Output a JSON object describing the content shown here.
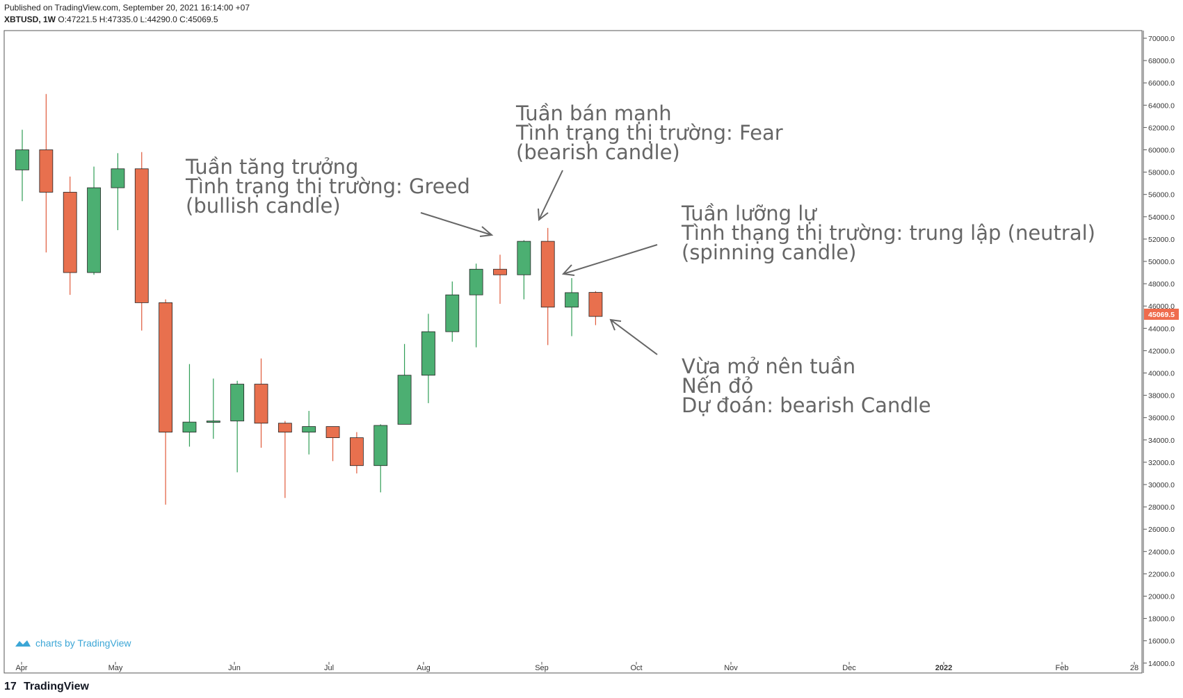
{
  "header": {
    "published": "Published on TradingView.com, September 20, 2021 16:14:00 +07",
    "symbol": "XBTUSD, 1W",
    "ohlc": "O:47221.5 H:47335.0 L:44290.0 C:45069.5"
  },
  "watermark": "charts by TradingView",
  "brand": "TradingView",
  "colors": {
    "up": "#4caf72",
    "down": "#e8704e",
    "up_wick": "#2e9d55",
    "down_wick": "#e05a3a",
    "price_tag": "#ef6c4d",
    "annotation": "#666666"
  },
  "chart_data": {
    "type": "candlestick",
    "ylim": [
      14000,
      71000
    ],
    "y_ticks": [
      "70000.0",
      "68000.0",
      "66000.0",
      "64000.0",
      "62000.0",
      "60000.0",
      "58000.0",
      "56000.0",
      "54000.0",
      "52000.0",
      "50000.0",
      "48000.0",
      "46000.0",
      "44000.0",
      "42000.0",
      "40000.0",
      "38000.0",
      "36000.0",
      "34000.0",
      "32000.0",
      "30000.0",
      "28000.0",
      "26000.0",
      "24000.0",
      "22000.0",
      "20000.0",
      "18000.0",
      "16000.0",
      "14000.0"
    ],
    "x_labels": [
      "Apr",
      "May",
      "Jun",
      "Jul",
      "Aug",
      "Sep",
      "Oct",
      "Nov",
      "Dec",
      "2022",
      "Feb",
      "28"
    ],
    "last_price": "45069.5",
    "candles": [
      {
        "week": 0,
        "o": 58200,
        "h": 61800,
        "l": 55400,
        "c": 60000
      },
      {
        "week": 1,
        "o": 60000,
        "h": 65000,
        "l": 50800,
        "c": 56200
      },
      {
        "week": 2,
        "o": 56200,
        "h": 57600,
        "l": 47000,
        "c": 49000
      },
      {
        "week": 3,
        "o": 49000,
        "h": 58500,
        "l": 48800,
        "c": 56600
      },
      {
        "week": 4,
        "o": 56600,
        "h": 59700,
        "l": 52800,
        "c": 58300
      },
      {
        "week": 5,
        "o": 58300,
        "h": 59800,
        "l": 43800,
        "c": 46300
      },
      {
        "week": 6,
        "o": 46300,
        "h": 46600,
        "l": 28200,
        "c": 34700
      },
      {
        "week": 7,
        "o": 34700,
        "h": 40800,
        "l": 33400,
        "c": 35600
      },
      {
        "week": 8,
        "o": 35600,
        "h": 39500,
        "l": 34100,
        "c": 35700
      },
      {
        "week": 9,
        "o": 35700,
        "h": 39300,
        "l": 31100,
        "c": 39000
      },
      {
        "week": 10,
        "o": 39000,
        "h": 41300,
        "l": 33300,
        "c": 35500
      },
      {
        "week": 11,
        "o": 35500,
        "h": 35700,
        "l": 28800,
        "c": 34700
      },
      {
        "week": 12,
        "o": 34700,
        "h": 36600,
        "l": 32700,
        "c": 35200
      },
      {
        "week": 13,
        "o": 35200,
        "h": 35200,
        "l": 32100,
        "c": 34200
      },
      {
        "week": 14,
        "o": 34200,
        "h": 34700,
        "l": 31000,
        "c": 31700
      },
      {
        "week": 15,
        "o": 31700,
        "h": 35400,
        "l": 29300,
        "c": 35300
      },
      {
        "week": 16,
        "o": 35400,
        "h": 42600,
        "l": 35400,
        "c": 39800
      },
      {
        "week": 17,
        "o": 39800,
        "h": 45300,
        "l": 37300,
        "c": 43700
      },
      {
        "week": 18,
        "o": 43700,
        "h": 48200,
        "l": 42800,
        "c": 47000
      },
      {
        "week": 19,
        "o": 47000,
        "h": 49800,
        "l": 42300,
        "c": 49300
      },
      {
        "week": 20,
        "o": 49300,
        "h": 50600,
        "l": 46200,
        "c": 48800
      },
      {
        "week": 21,
        "o": 48800,
        "h": 51900,
        "l": 46600,
        "c": 51800
      },
      {
        "week": 22,
        "o": 51800,
        "h": 53000,
        "l": 42500,
        "c": 45900
      },
      {
        "week": 23,
        "o": 45900,
        "h": 48500,
        "l": 43300,
        "c": 47200
      },
      {
        "week": 24,
        "o": 47221.5,
        "h": 47335,
        "l": 44290,
        "c": 45069.5
      }
    ]
  },
  "annotations": [
    {
      "lines": [
        "Tuần tăng trưởng",
        "Tình trạng thị trường: Greed",
        "(bullish candle)"
      ]
    },
    {
      "lines": [
        "Tuần bán mạnh",
        "Tình trạng thị trường: Fear",
        "(bearish candle)"
      ]
    },
    {
      "lines": [
        "Tuần lưỡng lự",
        "Tình thạng thị trường: trung lập (neutral)",
        "(spinning candle)"
      ]
    },
    {
      "lines": [
        "Vừa mở nên tuần",
        "Nến đỏ",
        "Dự đoán: bearish Candle"
      ]
    }
  ]
}
